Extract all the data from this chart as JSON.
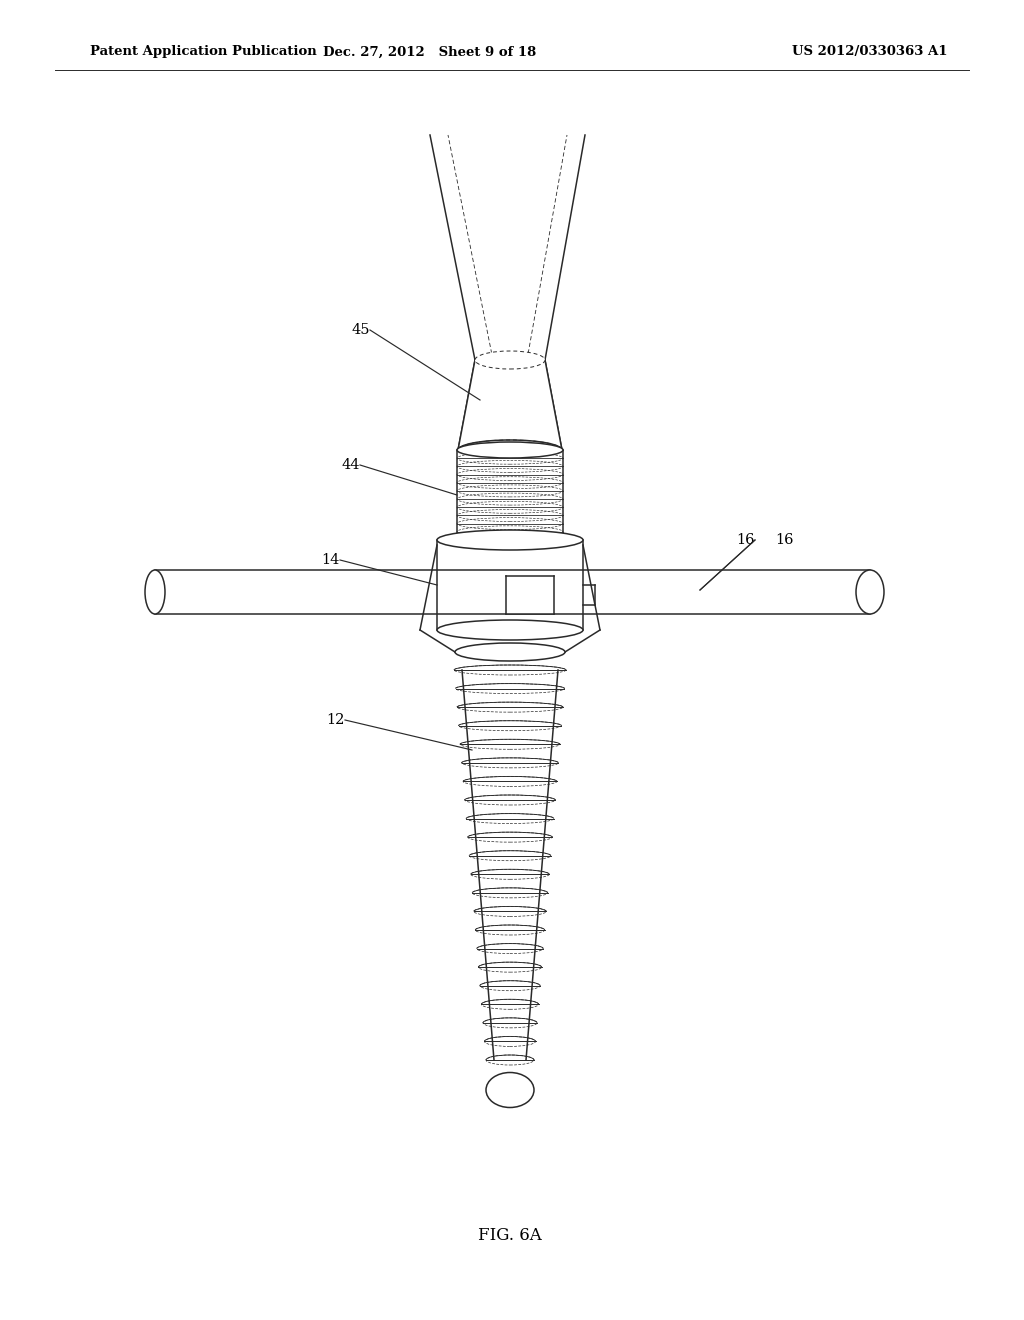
{
  "header_left": "Patent Application Publication",
  "header_mid": "Dec. 27, 2012   Sheet 9 of 18",
  "header_right": "US 2012/0330363 A1",
  "fig_label": "FIG. 6A",
  "bg_color": "#ffffff",
  "line_color": "#2a2a2a",
  "lw": 1.1
}
